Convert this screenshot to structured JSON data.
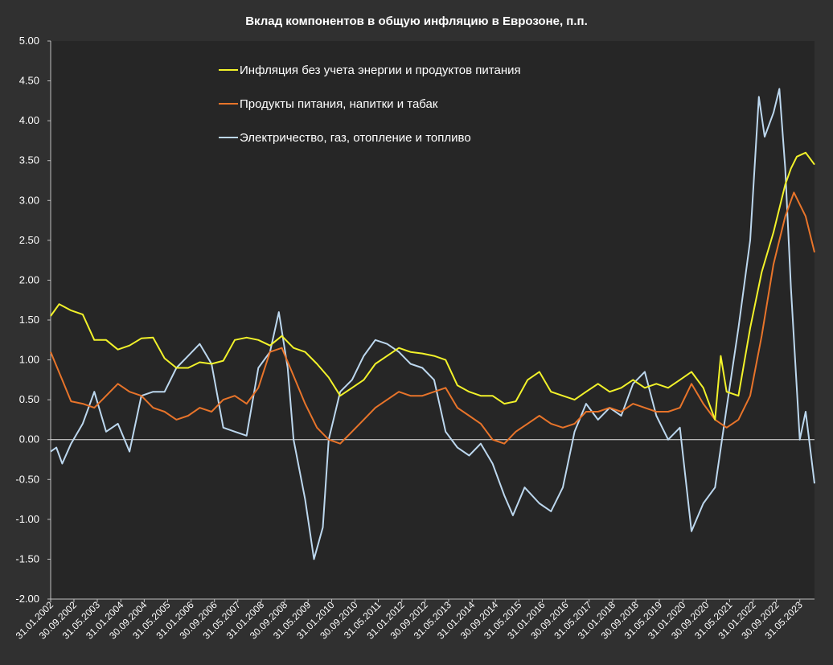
{
  "chart_data": {
    "type": "line",
    "title": "Вклад компонентов в общую инфляцию в Еврозоне, п.п.",
    "xlabel": "",
    "ylabel": "",
    "ylim": [
      -2.0,
      5.0
    ],
    "yticks": [
      "-2.00",
      "-1.50",
      "-1.00",
      "-0.50",
      "0.00",
      "0.50",
      "1.00",
      "1.50",
      "2.00",
      "2.50",
      "3.00",
      "3.50",
      "4.00",
      "4.50",
      "5.00"
    ],
    "xticks": [
      "31.01.2002",
      "30.09.2002",
      "31.05.2003",
      "31.01.2004",
      "30.09.2004",
      "31.05.2005",
      "31.01.2006",
      "30.09.2006",
      "31.05.2007",
      "31.01.2008",
      "30.09.2008",
      "31.05.2009",
      "31.01.2010",
      "30.09.2010",
      "31.05.2011",
      "31.01.2012",
      "30.09.2012",
      "31.05.2013",
      "31.01.2014",
      "30.09.2014",
      "31.05.2015",
      "31.01.2016",
      "30.09.2016",
      "31.05.2017",
      "31.01.2018",
      "30.09.2018",
      "31.05.2019",
      "31.01.2020",
      "30.09.2020",
      "31.05.2021",
      "31.01.2022",
      "30.09.2022",
      "31.05.2023"
    ],
    "x_start": "31.01.2002",
    "x_end": "31.10.2023",
    "grid": false,
    "legend": "top-center",
    "colors": {
      "background": "#303030",
      "plot": "#262626",
      "core": "#f2f22a",
      "food": "#e8742a",
      "energy": "#bcd7ee",
      "text": "#ffffff"
    },
    "series": [
      {
        "name": "Инфляция без учета энергии и продуктов питания",
        "color": "#f2f22a",
        "points": [
          [
            "31.01.2002",
            1.55
          ],
          [
            "30.04.2002",
            1.7
          ],
          [
            "31.08.2002",
            1.62
          ],
          [
            "31.12.2002",
            1.57
          ],
          [
            "30.04.2003",
            1.25
          ],
          [
            "31.08.2003",
            1.25
          ],
          [
            "31.12.2003",
            1.13
          ],
          [
            "30.04.2004",
            1.18
          ],
          [
            "31.08.2004",
            1.27
          ],
          [
            "31.12.2004",
            1.28
          ],
          [
            "30.04.2005",
            1.02
          ],
          [
            "31.08.2005",
            0.9
          ],
          [
            "31.12.2005",
            0.9
          ],
          [
            "30.04.2006",
            0.97
          ],
          [
            "31.08.2006",
            0.95
          ],
          [
            "31.12.2006",
            0.99
          ],
          [
            "30.04.2007",
            1.25
          ],
          [
            "31.08.2007",
            1.28
          ],
          [
            "31.12.2007",
            1.25
          ],
          [
            "30.04.2008",
            1.18
          ],
          [
            "31.08.2008",
            1.3
          ],
          [
            "31.12.2008",
            1.15
          ],
          [
            "30.04.2009",
            1.1
          ],
          [
            "31.08.2009",
            0.95
          ],
          [
            "31.12.2009",
            0.78
          ],
          [
            "30.04.2010",
            0.55
          ],
          [
            "31.08.2010",
            0.65
          ],
          [
            "31.12.2010",
            0.75
          ],
          [
            "30.04.2011",
            0.95
          ],
          [
            "31.08.2011",
            1.05
          ],
          [
            "31.12.2011",
            1.15
          ],
          [
            "30.04.2012",
            1.1
          ],
          [
            "31.08.2012",
            1.08
          ],
          [
            "31.12.2012",
            1.05
          ],
          [
            "30.04.2013",
            1.0
          ],
          [
            "31.08.2013",
            0.68
          ],
          [
            "31.12.2013",
            0.6
          ],
          [
            "30.04.2014",
            0.55
          ],
          [
            "31.08.2014",
            0.55
          ],
          [
            "31.12.2014",
            0.45
          ],
          [
            "30.04.2015",
            0.48
          ],
          [
            "31.08.2015",
            0.75
          ],
          [
            "31.12.2015",
            0.85
          ],
          [
            "30.04.2016",
            0.6
          ],
          [
            "31.08.2016",
            0.55
          ],
          [
            "31.12.2016",
            0.5
          ],
          [
            "30.04.2017",
            0.6
          ],
          [
            "31.08.2017",
            0.7
          ],
          [
            "31.12.2017",
            0.6
          ],
          [
            "30.04.2018",
            0.65
          ],
          [
            "31.08.2018",
            0.75
          ],
          [
            "31.12.2018",
            0.65
          ],
          [
            "30.04.2019",
            0.7
          ],
          [
            "31.08.2019",
            0.65
          ],
          [
            "31.12.2019",
            0.75
          ],
          [
            "30.04.2020",
            0.85
          ],
          [
            "31.08.2020",
            0.65
          ],
          [
            "31.12.2020",
            0.25
          ],
          [
            "28.02.2021",
            1.05
          ],
          [
            "30.04.2021",
            0.6
          ],
          [
            "31.08.2021",
            0.55
          ],
          [
            "31.12.2021",
            1.4
          ],
          [
            "30.04.2022",
            2.1
          ],
          [
            "31.08.2022",
            2.6
          ],
          [
            "31.12.2022",
            3.2
          ],
          [
            "28.02.2023",
            3.4
          ],
          [
            "30.04.2023",
            3.55
          ],
          [
            "31.07.2023",
            3.6
          ],
          [
            "31.10.2023",
            3.45
          ]
        ]
      },
      {
        "name": "Продукты питания, напитки и табак",
        "color": "#e8742a",
        "points": [
          [
            "31.01.2002",
            1.1
          ],
          [
            "31.05.2002",
            0.75
          ],
          [
            "31.08.2002",
            0.48
          ],
          [
            "31.12.2002",
            0.45
          ],
          [
            "30.04.2003",
            0.4
          ],
          [
            "31.08.2003",
            0.55
          ],
          [
            "31.12.2003",
            0.7
          ],
          [
            "30.04.2004",
            0.6
          ],
          [
            "31.08.2004",
            0.55
          ],
          [
            "31.12.2004",
            0.4
          ],
          [
            "30.04.2005",
            0.35
          ],
          [
            "31.08.2005",
            0.25
          ],
          [
            "31.12.2005",
            0.3
          ],
          [
            "30.04.2006",
            0.4
          ],
          [
            "31.08.2006",
            0.35
          ],
          [
            "31.12.2006",
            0.5
          ],
          [
            "30.04.2007",
            0.55
          ],
          [
            "31.08.2007",
            0.45
          ],
          [
            "31.12.2007",
            0.65
          ],
          [
            "30.04.2008",
            1.1
          ],
          [
            "31.08.2008",
            1.15
          ],
          [
            "31.12.2008",
            0.8
          ],
          [
            "30.04.2009",
            0.45
          ],
          [
            "31.08.2009",
            0.15
          ],
          [
            "31.12.2009",
            0.0
          ],
          [
            "30.04.2010",
            -0.05
          ],
          [
            "31.08.2010",
            0.1
          ],
          [
            "31.12.2010",
            0.25
          ],
          [
            "30.04.2011",
            0.4
          ],
          [
            "31.08.2011",
            0.5
          ],
          [
            "31.12.2011",
            0.6
          ],
          [
            "30.04.2012",
            0.55
          ],
          [
            "31.08.2012",
            0.55
          ],
          [
            "31.12.2012",
            0.6
          ],
          [
            "30.04.2013",
            0.65
          ],
          [
            "31.08.2013",
            0.4
          ],
          [
            "31.12.2013",
            0.3
          ],
          [
            "30.04.2014",
            0.2
          ],
          [
            "31.08.2014",
            0.0
          ],
          [
            "31.12.2014",
            -0.05
          ],
          [
            "30.04.2015",
            0.1
          ],
          [
            "31.08.2015",
            0.2
          ],
          [
            "31.12.2015",
            0.3
          ],
          [
            "30.04.2016",
            0.2
          ],
          [
            "31.08.2016",
            0.15
          ],
          [
            "31.12.2016",
            0.2
          ],
          [
            "30.04.2017",
            0.35
          ],
          [
            "31.08.2017",
            0.35
          ],
          [
            "31.12.2017",
            0.4
          ],
          [
            "30.04.2018",
            0.35
          ],
          [
            "31.08.2018",
            0.45
          ],
          [
            "31.12.2018",
            0.4
          ],
          [
            "30.04.2019",
            0.35
          ],
          [
            "31.08.2019",
            0.35
          ],
          [
            "31.12.2019",
            0.4
          ],
          [
            "30.04.2020",
            0.7
          ],
          [
            "31.08.2020",
            0.45
          ],
          [
            "31.12.2020",
            0.25
          ],
          [
            "30.04.2021",
            0.15
          ],
          [
            "31.08.2021",
            0.25
          ],
          [
            "31.12.2021",
            0.55
          ],
          [
            "30.04.2022",
            1.3
          ],
          [
            "31.08.2022",
            2.2
          ],
          [
            "31.12.2022",
            2.8
          ],
          [
            "31.03.2023",
            3.1
          ],
          [
            "31.07.2023",
            2.8
          ],
          [
            "31.10.2023",
            2.35
          ]
        ]
      },
      {
        "name": "Электричество, газ, отопление и топливо",
        "color": "#bcd7ee",
        "points": [
          [
            "31.01.2002",
            -0.15
          ],
          [
            "31.03.2002",
            -0.1
          ],
          [
            "31.05.2002",
            -0.3
          ],
          [
            "31.08.2002",
            -0.05
          ],
          [
            "31.12.2002",
            0.2
          ],
          [
            "30.04.2003",
            0.6
          ],
          [
            "31.08.2003",
            0.1
          ],
          [
            "31.12.2003",
            0.2
          ],
          [
            "30.04.2004",
            -0.15
          ],
          [
            "31.08.2004",
            0.55
          ],
          [
            "31.12.2004",
            0.6
          ],
          [
            "30.04.2005",
            0.6
          ],
          [
            "31.08.2005",
            0.9
          ],
          [
            "31.12.2005",
            1.05
          ],
          [
            "30.04.2006",
            1.2
          ],
          [
            "31.08.2006",
            0.95
          ],
          [
            "31.12.2006",
            0.15
          ],
          [
            "30.04.2007",
            0.1
          ],
          [
            "31.08.2007",
            0.05
          ],
          [
            "31.12.2007",
            0.9
          ],
          [
            "30.04.2008",
            1.1
          ],
          [
            "31.07.2008",
            1.6
          ],
          [
            "31.10.2008",
            0.9
          ],
          [
            "31.12.2008",
            0.0
          ],
          [
            "30.04.2009",
            -0.75
          ],
          [
            "31.07.2009",
            -1.5
          ],
          [
            "31.10.2009",
            -1.1
          ],
          [
            "31.12.2009",
            0.0
          ],
          [
            "30.04.2010",
            0.6
          ],
          [
            "31.08.2010",
            0.75
          ],
          [
            "31.12.2010",
            1.05
          ],
          [
            "30.04.2011",
            1.25
          ],
          [
            "31.08.2011",
            1.2
          ],
          [
            "31.12.2011",
            1.1
          ],
          [
            "30.04.2012",
            0.95
          ],
          [
            "31.08.2012",
            0.9
          ],
          [
            "31.12.2012",
            0.75
          ],
          [
            "30.04.2013",
            0.1
          ],
          [
            "31.08.2013",
            -0.1
          ],
          [
            "31.12.2013",
            -0.2
          ],
          [
            "30.04.2014",
            -0.05
          ],
          [
            "31.08.2014",
            -0.3
          ],
          [
            "31.12.2014",
            -0.7
          ],
          [
            "31.03.2015",
            -0.95
          ],
          [
            "31.07.2015",
            -0.6
          ],
          [
            "31.12.2015",
            -0.8
          ],
          [
            "30.04.2016",
            -0.9
          ],
          [
            "31.08.2016",
            -0.6
          ],
          [
            "31.12.2016",
            0.1
          ],
          [
            "30.04.2017",
            0.45
          ],
          [
            "31.08.2017",
            0.25
          ],
          [
            "31.12.2017",
            0.4
          ],
          [
            "30.04.2018",
            0.3
          ],
          [
            "31.08.2018",
            0.7
          ],
          [
            "31.12.2018",
            0.85
          ],
          [
            "30.04.2019",
            0.3
          ],
          [
            "31.08.2019",
            0.0
          ],
          [
            "31.12.2019",
            0.15
          ],
          [
            "30.04.2020",
            -1.15
          ],
          [
            "31.08.2020",
            -0.8
          ],
          [
            "31.12.2020",
            -0.6
          ],
          [
            "30.04.2021",
            0.4
          ],
          [
            "31.08.2021",
            1.4
          ],
          [
            "31.12.2021",
            2.5
          ],
          [
            "31.03.2022",
            4.3
          ],
          [
            "31.05.2022",
            3.8
          ],
          [
            "31.08.2022",
            4.1
          ],
          [
            "31.10.2022",
            4.4
          ],
          [
            "31.12.2022",
            3.4
          ],
          [
            "28.02.2023",
            1.9
          ],
          [
            "31.05.2023",
            0.0
          ],
          [
            "31.07.2023",
            0.35
          ],
          [
            "31.10.2023",
            -0.55
          ]
        ]
      }
    ]
  }
}
